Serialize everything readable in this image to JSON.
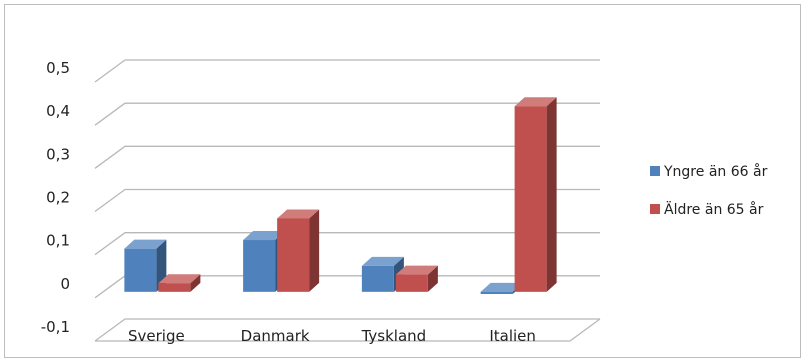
{
  "chart_data": {
    "type": "bar",
    "title": "",
    "xlabel": "",
    "ylabel": "",
    "categories": [
      "Sverige",
      "Danmark",
      "Tyskland",
      "Italien"
    ],
    "series": [
      {
        "name": "Yngre än 66 år",
        "values": [
          0.1,
          0.12,
          0.06,
          -0.005
        ],
        "color": "#4f81bd"
      },
      {
        "name": "Äldre än 65 år",
        "values": [
          0.02,
          0.17,
          0.04,
          0.43
        ],
        "color": "#c0504d"
      }
    ],
    "yticks": [
      "0,5",
      "0,4",
      "0,3",
      "0,2",
      "0,1",
      "0",
      "-0,1"
    ],
    "ylim": [
      -0.1,
      0.5
    ],
    "grid": true,
    "legend_position": "right",
    "style": "3d-column"
  }
}
